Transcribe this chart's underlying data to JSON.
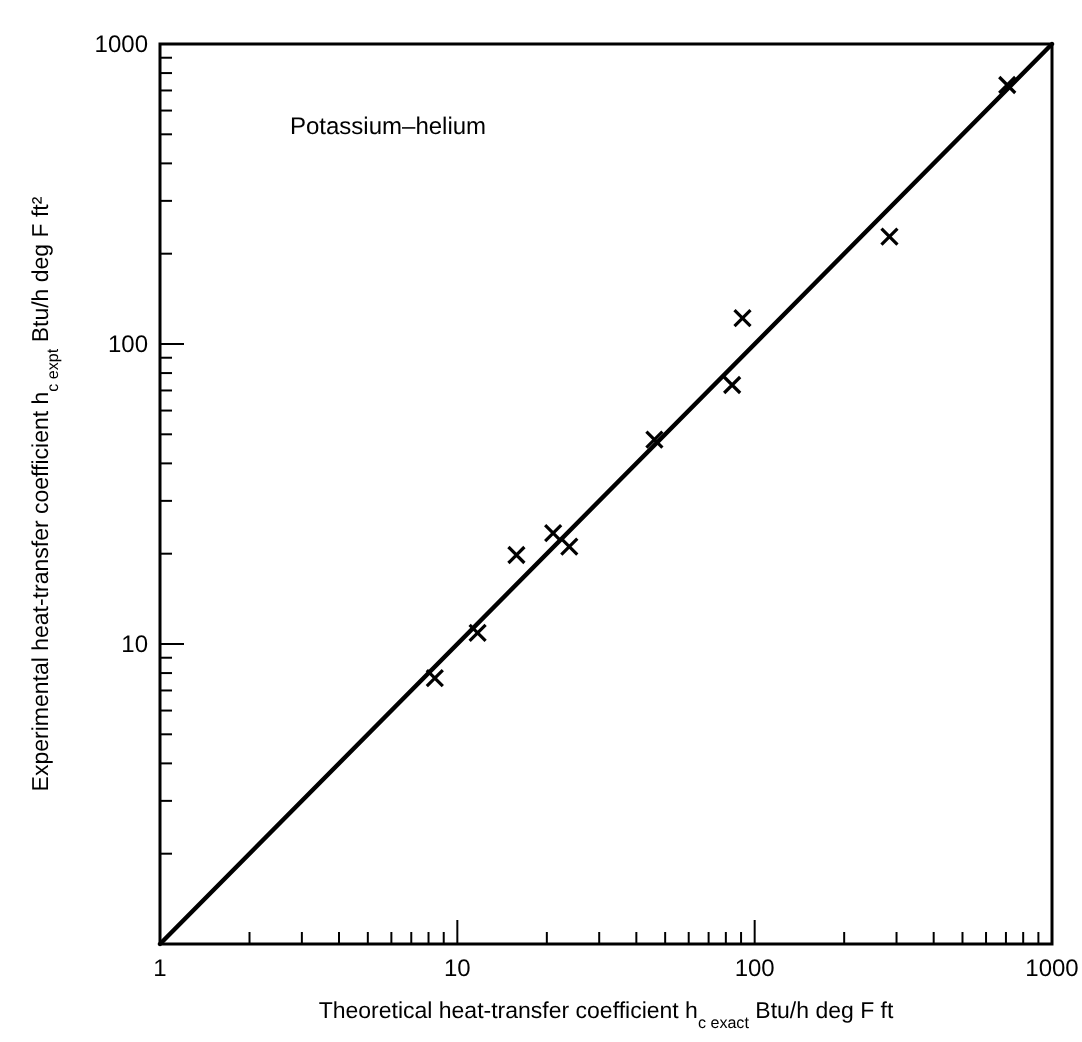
{
  "chart_data": {
    "type": "scatter",
    "xlabel": "Theoretical heat-transfer coefficient h$_{c exact}$   Btu/h deg F ft",
    "ylabel": "Experimental heat-transfer coefficient h$_{c expt}$   Btu/h deg F ft²",
    "annotations": [
      "Potassium–helium"
    ],
    "log": "xy",
    "xlim": [
      1,
      1000
    ],
    "ylim": [
      1,
      1000
    ],
    "xticks": [
      1,
      {
        "value": 2,
        "label": null
      },
      {
        "value": 3,
        "label": null
      },
      {
        "value": 4,
        "label": null
      },
      {
        "value": 5,
        "label": null
      },
      {
        "value": 6,
        "label": null
      },
      {
        "value": 7,
        "label": null
      },
      {
        "value": 8,
        "label": null
      },
      {
        "value": 9,
        "label": null
      },
      10,
      {
        "value": 20,
        "label": null
      },
      {
        "value": 30,
        "label": null
      },
      {
        "value": 40,
        "label": null
      },
      {
        "value": 50,
        "label": null
      },
      {
        "value": 60,
        "label": null
      },
      {
        "value": 70,
        "label": null
      },
      {
        "value": 80,
        "label": null
      },
      {
        "value": 90,
        "label": null
      },
      100,
      {
        "value": 200,
        "label": null
      },
      {
        "value": 300,
        "label": null
      },
      {
        "value": 400,
        "label": null
      },
      {
        "value": 500,
        "label": null
      },
      {
        "value": 600,
        "label": null
      },
      {
        "value": 700,
        "label": null
      },
      {
        "value": 800,
        "label": null
      },
      {
        "value": 900,
        "label": null
      },
      1000
    ],
    "yticks": [
      {
        "value": 1,
        "label": null
      },
      {
        "value": 2,
        "label": null
      },
      {
        "value": 3,
        "label": null
      },
      {
        "value": 4,
        "label": null
      },
      {
        "value": 5,
        "label": null
      },
      {
        "value": 6,
        "label": null
      },
      {
        "value": 7,
        "label": null
      },
      {
        "value": 8,
        "label": null
      },
      {
        "value": 9,
        "label": null
      },
      10,
      {
        "value": 20,
        "label": null
      },
      {
        "value": 30,
        "label": null
      },
      {
        "value": 40,
        "label": null
      },
      {
        "value": 50,
        "label": null
      },
      {
        "value": 60,
        "label": null
      },
      {
        "value": 70,
        "label": null
      },
      {
        "value": 80,
        "label": null
      },
      {
        "value": 90,
        "label": null
      },
      100,
      {
        "value": 200,
        "label": null
      },
      {
        "value": 300,
        "label": null
      },
      {
        "value": 400,
        "label": null
      },
      {
        "value": 500,
        "label": null
      },
      {
        "value": 600,
        "label": null
      },
      {
        "value": 700,
        "label": null
      },
      {
        "value": 800,
        "label": null
      },
      {
        "value": 900,
        "label": null
      },
      1000
    ],
    "grid": false,
    "series": [
      {
        "type": "line",
        "color": "#000000",
        "marker": "none",
        "line_style": "solid",
        "x": [
          1,
          1000
        ],
        "values": [
          1,
          1000
        ]
      },
      {
        "color": "#000000",
        "marker": "cross",
        "x": [
          8.4,
          11.7,
          15.8,
          21,
          23.8,
          46,
          84,
          91,
          284,
          707
        ],
        "values": [
          7.7,
          10.9,
          19.8,
          23.4,
          21.1,
          48,
          73,
          122,
          228,
          730
        ]
      }
    ]
  }
}
